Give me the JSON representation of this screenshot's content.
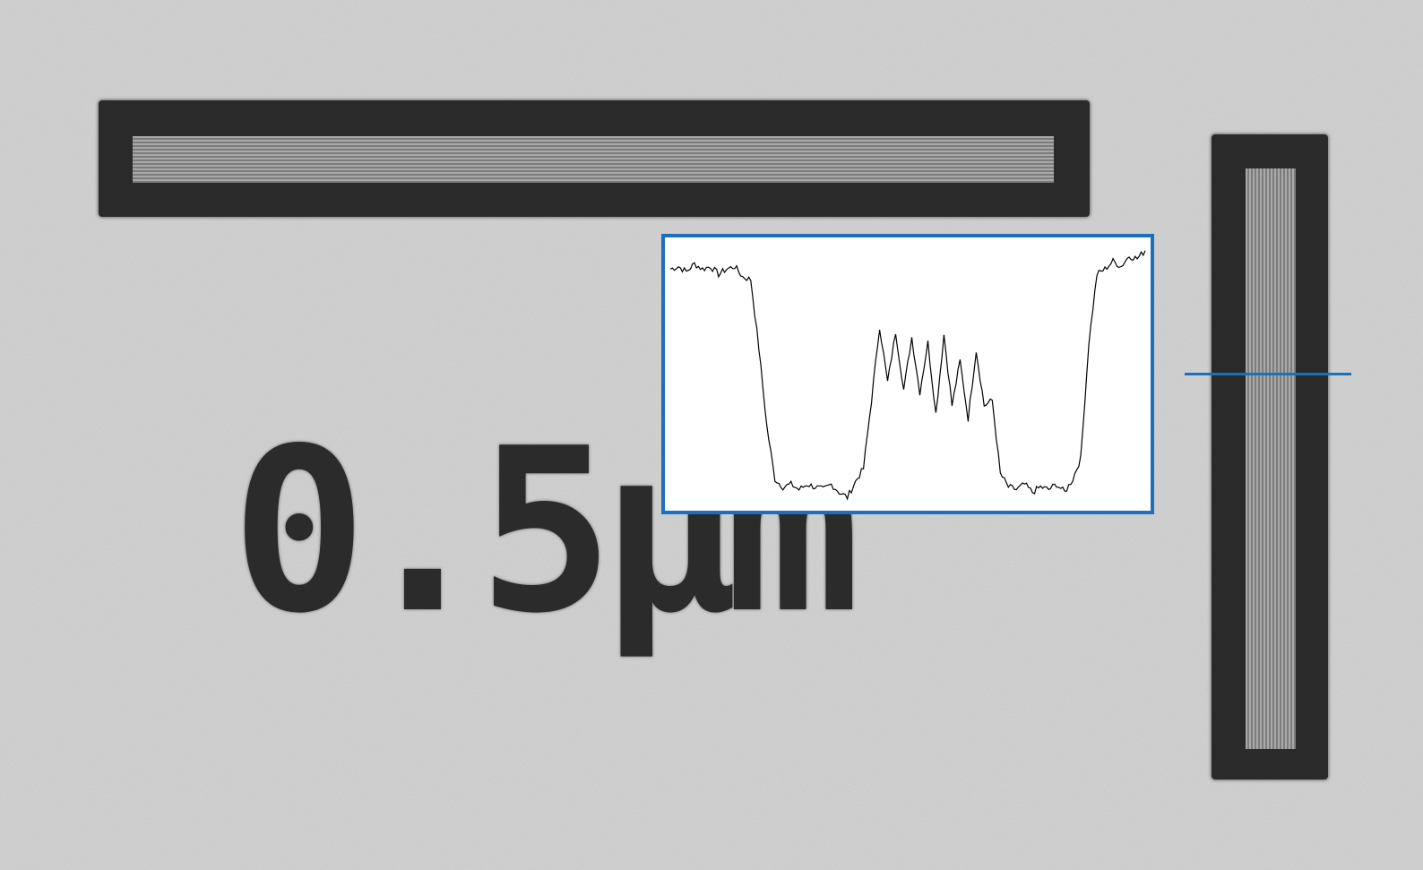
{
  "image": {
    "scale_label": "0.5µm",
    "colors": {
      "background": "#d2d2d2",
      "pattern_dark": "#2a2a2a",
      "grating": "#8e8e8e",
      "inset_border": "#1a6fbf",
      "trace": "#000000"
    }
  },
  "inset": {
    "description_free": true,
    "profile": [
      0.9,
      0.91,
      0.89,
      0.92,
      0.9,
      0.91,
      0.88,
      0.9,
      0.91,
      0.87,
      0.86,
      0.6,
      0.3,
      0.1,
      0.07,
      0.08,
      0.06,
      0.08,
      0.07,
      0.06,
      0.08,
      0.05,
      0.03,
      0.09,
      0.14,
      0.4,
      0.68,
      0.47,
      0.66,
      0.44,
      0.64,
      0.43,
      0.62,
      0.35,
      0.65,
      0.38,
      0.55,
      0.33,
      0.59,
      0.38,
      0.4,
      0.12,
      0.07,
      0.06,
      0.08,
      0.05,
      0.07,
      0.06,
      0.08,
      0.05,
      0.1,
      0.18,
      0.62,
      0.88,
      0.9,
      0.93,
      0.91,
      0.95,
      0.94,
      0.97
    ]
  }
}
